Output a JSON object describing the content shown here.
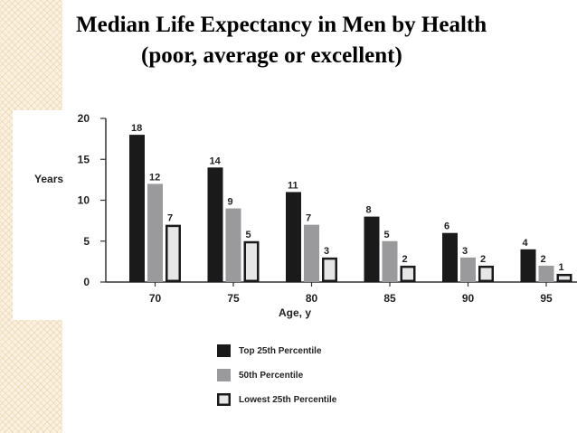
{
  "title": {
    "line1": "Median Life Expectancy in Men by Health",
    "line2": "(poor, average or excellent)"
  },
  "colors": {
    "top": "#1a1a1a",
    "mid": "#9a9a9c",
    "low_fill": "#e6e6e6",
    "low_stroke": "#1a1a1a",
    "axis": "#333333",
    "stripe": "#fbf1de"
  },
  "chart_data": {
    "type": "bar",
    "categories": [
      "70",
      "75",
      "80",
      "85",
      "90",
      "95"
    ],
    "series": [
      {
        "name": "Top 25th Percentile",
        "values": [
          18,
          14,
          11,
          8,
          6,
          4
        ]
      },
      {
        "name": "50th Percentile",
        "values": [
          12,
          9,
          7,
          5,
          3,
          2
        ]
      },
      {
        "name": "Lowest 25th Percentile",
        "values": [
          7,
          5,
          3,
          2,
          2,
          1
        ]
      }
    ],
    "ylabel": "Years",
    "xlabel": "Age, y",
    "ylim": [
      0,
      20
    ],
    "yticks": [
      "20",
      "15",
      "10",
      "5",
      "0"
    ],
    "grid": false,
    "legend_position": "bottom"
  }
}
